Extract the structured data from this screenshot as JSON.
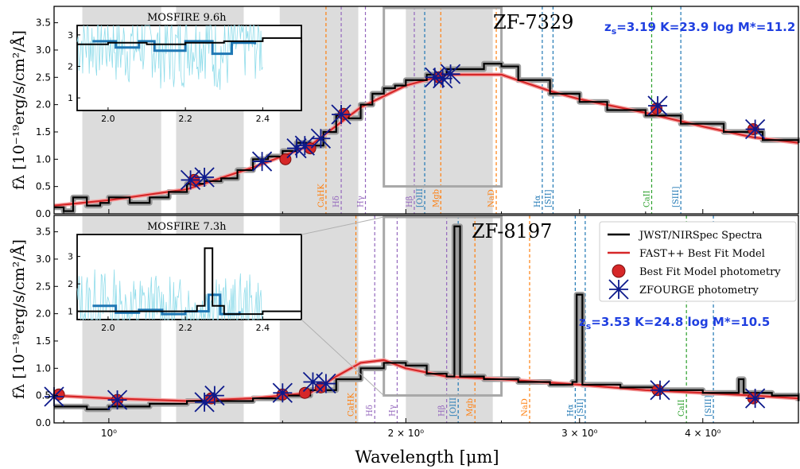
{
  "chart_data": {
    "type": "line",
    "xlabel": "Wavelength [μm]",
    "xscale": "log",
    "x_tick_labels": [
      "10⁰",
      "2 × 10⁰",
      "3 × 10⁰",
      "4 × 10⁰"
    ],
    "xlim": [
      0.88,
      5.0
    ],
    "legend": {
      "location": "top-right of lower panel",
      "entries": [
        {
          "label": "JWST/NIRSpec Spectra",
          "color": "#000000",
          "marker": "line"
        },
        {
          "label": "FAST++ Best Fit Model",
          "color": "#d62728",
          "marker": "line"
        },
        {
          "label": "Best Fit Model photometry",
          "color": "#d62728",
          "marker": "circle"
        },
        {
          "label": "ZFOURGE photometry",
          "color": "#0d1a8c",
          "marker": "star-cross"
        }
      ]
    },
    "panels": [
      {
        "name": "ZF-7329",
        "meta": "zs=3.19 K=23.9 log M*=11.2",
        "meta_parts": {
          "z_prefix": "z",
          "z_sub": "s",
          "rest": "=3.19 K=23.9 log M*=11.2"
        },
        "ylabel": "fλ [10⁻¹⁹erg/s/cm²/Å]",
        "ylim": [
          0,
          3.8
        ],
        "yticks": [
          0.0,
          0.5,
          1.0,
          1.5,
          2.0,
          2.5,
          3.0,
          3.5
        ],
        "shaded_bands_um": [
          [
            0.94,
            1.13
          ],
          [
            1.17,
            1.37
          ],
          [
            1.49,
            1.79
          ],
          [
            2.0,
            2.45
          ]
        ],
        "zoom_box_um": [
          1.9,
          2.5
        ],
        "spectrum_black": [
          [
            0.88,
            0.12
          ],
          [
            0.9,
            0.05
          ],
          [
            0.92,
            0.3
          ],
          [
            0.95,
            0.15
          ],
          [
            0.98,
            0.2
          ],
          [
            1.0,
            0.3
          ],
          [
            1.05,
            0.2
          ],
          [
            1.1,
            0.3
          ],
          [
            1.15,
            0.4
          ],
          [
            1.2,
            0.55
          ],
          [
            1.25,
            0.6
          ],
          [
            1.3,
            0.65
          ],
          [
            1.35,
            0.8
          ],
          [
            1.4,
            1.0
          ],
          [
            1.45,
            1.05
          ],
          [
            1.5,
            1.15
          ],
          [
            1.55,
            1.3
          ],
          [
            1.6,
            1.25
          ],
          [
            1.65,
            1.5
          ],
          [
            1.7,
            1.8
          ],
          [
            1.75,
            1.75
          ],
          [
            1.8,
            2.0
          ],
          [
            1.85,
            2.2
          ],
          [
            1.9,
            2.3
          ],
          [
            1.95,
            2.35
          ],
          [
            2.0,
            2.45
          ],
          [
            2.1,
            2.55
          ],
          [
            2.2,
            2.65
          ],
          [
            2.3,
            2.65
          ],
          [
            2.4,
            2.75
          ],
          [
            2.5,
            2.7
          ],
          [
            2.6,
            2.45
          ],
          [
            2.8,
            2.2
          ],
          [
            3.0,
            2.05
          ],
          [
            3.2,
            1.9
          ],
          [
            3.5,
            1.8
          ],
          [
            3.8,
            1.65
          ],
          [
            4.2,
            1.5
          ],
          [
            4.6,
            1.35
          ],
          [
            5.0,
            1.3
          ]
        ],
        "model_red": [
          [
            0.88,
            0.15
          ],
          [
            1.0,
            0.25
          ],
          [
            1.2,
            0.45
          ],
          [
            1.4,
            0.85
          ],
          [
            1.6,
            1.25
          ],
          [
            1.8,
            1.95
          ],
          [
            2.0,
            2.35
          ],
          [
            2.2,
            2.55
          ],
          [
            2.5,
            2.55
          ],
          [
            2.8,
            2.25
          ],
          [
            3.0,
            2.1
          ],
          [
            3.5,
            1.85
          ],
          [
            4.0,
            1.6
          ],
          [
            4.5,
            1.4
          ],
          [
            5.0,
            1.3
          ]
        ],
        "model_photometry": [
          [
            1.22,
            0.62
          ],
          [
            1.51,
            1.0
          ],
          [
            1.6,
            1.2
          ],
          [
            1.73,
            1.83
          ],
          [
            2.16,
            2.5
          ],
          [
            3.59,
            1.93
          ],
          [
            4.5,
            1.55
          ]
        ],
        "zfourge_photometry": [
          [
            1.21,
            0.62
          ],
          [
            1.25,
            0.67
          ],
          [
            1.43,
            0.96
          ],
          [
            1.55,
            1.2
          ],
          [
            1.58,
            1.25
          ],
          [
            1.64,
            1.38
          ],
          [
            1.72,
            1.82
          ],
          [
            2.14,
            2.5
          ],
          [
            2.18,
            2.48
          ],
          [
            2.22,
            2.56
          ],
          [
            3.6,
            1.98
          ],
          [
            4.52,
            1.55
          ]
        ],
        "lines": [
          {
            "label": "CaHK",
            "x_um": 1.66,
            "color": "#ff7f0e"
          },
          {
            "label": "Hδ",
            "x_um": 1.72,
            "color": "#9467bd"
          },
          {
            "label": "Hγ",
            "x_um": 1.82,
            "color": "#9467bd"
          },
          {
            "label": "Hβ",
            "x_um": 2.04,
            "color": "#9467bd"
          },
          {
            "label": "[OIII]",
            "x_um": 2.09,
            "color": "#1f77b4"
          },
          {
            "label": "Mgb",
            "x_um": 2.17,
            "color": "#ff7f0e"
          },
          {
            "label": "NaD",
            "x_um": 2.47,
            "color": "#ff7f0e"
          },
          {
            "label": "Hα",
            "x_um": 2.75,
            "color": "#1f77b4"
          },
          {
            "label": "[SII]",
            "x_um": 2.82,
            "color": "#1f77b4"
          },
          {
            "label": "CaII",
            "x_um": 3.55,
            "color": "#2ca02c"
          },
          {
            "label": "[SIII]",
            "x_um": 3.8,
            "color": "#1f77b4"
          }
        ],
        "inset": {
          "title": "MOSFIRE 9.6h",
          "xlim": [
            1.92,
            2.5
          ],
          "ylim": [
            0.6,
            3.3
          ],
          "xticks": [
            2.0,
            2.2,
            2.4
          ],
          "yticks": [
            1,
            2,
            3
          ],
          "black": [
            [
              1.92,
              2.7
            ],
            [
              2.0,
              2.75
            ],
            [
              2.1,
              2.7
            ],
            [
              2.2,
              2.75
            ],
            [
              2.3,
              2.8
            ],
            [
              2.4,
              2.9
            ],
            [
              2.5,
              2.75
            ]
          ],
          "blue": [
            [
              1.96,
              2.8
            ],
            [
              2.02,
              2.6
            ],
            [
              2.08,
              2.8
            ],
            [
              2.12,
              2.5
            ],
            [
              2.2,
              2.8
            ],
            [
              2.27,
              2.4
            ],
            [
              2.32,
              2.75
            ],
            [
              2.38,
              2.7
            ]
          ]
        }
      },
      {
        "name": "ZF-8197",
        "meta": "zs=3.53 K=24.8 log M*=10.5",
        "meta_parts": {
          "z_prefix": "z",
          "z_sub": "s",
          "rest": "=3.53 K=24.8 log M*=10.5"
        },
        "ylabel": "fλ [10⁻¹⁹erg/s/cm²/Å]",
        "ylim": [
          0,
          3.8
        ],
        "yticks": [
          0.0,
          0.5,
          1.0,
          1.5,
          2.0,
          2.5,
          3.0,
          3.5
        ],
        "shaded_bands_um": [
          [
            0.94,
            1.13
          ],
          [
            1.17,
            1.37
          ],
          [
            1.49,
            1.79
          ],
          [
            2.0,
            2.45
          ]
        ],
        "zoom_box_um": [
          1.9,
          2.5
        ],
        "spectrum_black": [
          [
            0.88,
            0.3
          ],
          [
            0.95,
            0.25
          ],
          [
            1.0,
            0.3
          ],
          [
            1.1,
            0.35
          ],
          [
            1.2,
            0.4
          ],
          [
            1.3,
            0.4
          ],
          [
            1.4,
            0.45
          ],
          [
            1.5,
            0.5
          ],
          [
            1.6,
            0.6
          ],
          [
            1.7,
            0.8
          ],
          [
            1.8,
            1.0
          ],
          [
            1.9,
            1.1
          ],
          [
            2.0,
            1.05
          ],
          [
            2.1,
            0.9
          ],
          [
            2.2,
            0.85
          ],
          [
            2.24,
            3.6
          ],
          [
            2.27,
            0.85
          ],
          [
            2.4,
            0.8
          ],
          [
            2.6,
            0.75
          ],
          [
            2.8,
            0.7
          ],
          [
            2.95,
            0.75
          ],
          [
            2.98,
            2.35
          ],
          [
            3.02,
            0.7
          ],
          [
            3.3,
            0.65
          ],
          [
            3.6,
            0.6
          ],
          [
            4.0,
            0.55
          ],
          [
            4.35,
            0.8
          ],
          [
            4.4,
            0.55
          ],
          [
            4.7,
            0.5
          ],
          [
            5.0,
            0.4
          ]
        ],
        "model_red": [
          [
            0.88,
            0.5
          ],
          [
            1.0,
            0.45
          ],
          [
            1.2,
            0.4
          ],
          [
            1.4,
            0.45
          ],
          [
            1.6,
            0.55
          ],
          [
            1.7,
            0.85
          ],
          [
            1.8,
            1.1
          ],
          [
            1.9,
            1.15
          ],
          [
            2.0,
            1.0
          ],
          [
            2.2,
            0.85
          ],
          [
            2.5,
            0.8
          ],
          [
            3.0,
            0.7
          ],
          [
            3.5,
            0.6
          ],
          [
            4.0,
            0.55
          ],
          [
            4.5,
            0.5
          ],
          [
            5.0,
            0.45
          ]
        ],
        "model_photometry": [
          [
            0.89,
            0.52
          ],
          [
            1.02,
            0.42
          ],
          [
            1.27,
            0.45
          ],
          [
            1.5,
            0.52
          ],
          [
            1.58,
            0.55
          ],
          [
            1.64,
            0.65
          ],
          [
            3.6,
            0.6
          ],
          [
            4.5,
            0.45
          ]
        ],
        "zfourge_photometry": [
          [
            0.88,
            0.48
          ],
          [
            1.02,
            0.42
          ],
          [
            1.25,
            0.38
          ],
          [
            1.28,
            0.5
          ],
          [
            1.5,
            0.55
          ],
          [
            1.61,
            0.75
          ],
          [
            1.66,
            0.72
          ],
          [
            3.62,
            0.6
          ],
          [
            4.52,
            0.45
          ]
        ],
        "lines": [
          {
            "label": "CaHK",
            "x_um": 1.78,
            "color": "#ff7f0e"
          },
          {
            "label": "Hδ",
            "x_um": 1.86,
            "color": "#9467bd"
          },
          {
            "label": "Hγ",
            "x_um": 1.96,
            "color": "#9467bd"
          },
          {
            "label": "Hβ",
            "x_um": 2.2,
            "color": "#9467bd"
          },
          {
            "label": "[OIII]",
            "x_um": 2.26,
            "color": "#1f77b4"
          },
          {
            "label": "Mgb",
            "x_um": 2.35,
            "color": "#ff7f0e"
          },
          {
            "label": "NaD",
            "x_um": 2.67,
            "color": "#ff7f0e"
          },
          {
            "label": "Hα",
            "x_um": 2.97,
            "color": "#1f77b4"
          },
          {
            "label": "[SII]",
            "x_um": 3.04,
            "color": "#1f77b4"
          },
          {
            "label": "CaII",
            "x_um": 3.85,
            "color": "#2ca02c"
          },
          {
            "label": "[SIII]",
            "x_um": 4.1,
            "color": "#1f77b4"
          }
        ],
        "inset": {
          "title": "MOSFIRE 7.3h",
          "xlim": [
            1.92,
            2.5
          ],
          "ylim": [
            0.7,
            3.8
          ],
          "xticks": [
            2.0,
            2.2,
            2.4
          ],
          "yticks": [
            1,
            2,
            3
          ],
          "black": [
            [
              1.92,
              1.0
            ],
            [
              2.0,
              1.0
            ],
            [
              2.1,
              1.0
            ],
            [
              2.2,
              1.0
            ],
            [
              2.23,
              1.2
            ],
            [
              2.25,
              3.3
            ],
            [
              2.27,
              1.2
            ],
            [
              2.3,
              0.9
            ],
            [
              2.4,
              1.0
            ],
            [
              2.5,
              1.0
            ]
          ],
          "blue": [
            [
              1.96,
              1.2
            ],
            [
              2.02,
              0.95
            ],
            [
              2.08,
              1.05
            ],
            [
              2.14,
              0.9
            ],
            [
              2.2,
              1.0
            ],
            [
              2.26,
              1.6
            ],
            [
              2.29,
              0.9
            ],
            [
              2.34,
              1.0
            ]
          ]
        }
      }
    ]
  }
}
